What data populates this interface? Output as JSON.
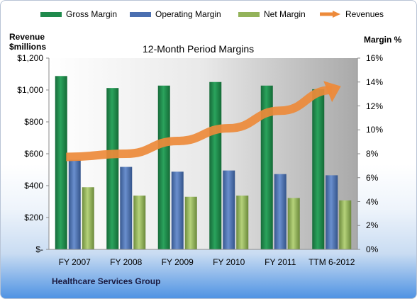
{
  "legend": [
    {
      "label": "Gross Margin",
      "color": "#1f8a4c"
    },
    {
      "label": "Operating Margin",
      "color": "#4a6fb0"
    },
    {
      "label": "Net Margin",
      "color": "#93b35a"
    },
    {
      "label": "Revenues",
      "color": "#ed8a3a"
    }
  ],
  "left_axis_title": [
    "Revenue",
    "$millions"
  ],
  "right_axis_title": "Margin %",
  "company": "Healthcare Services Group",
  "chart_data": {
    "type": "bar",
    "title": "12-Month Period Margins",
    "categories": [
      "FY 2007",
      "FY 2008",
      "FY 2009",
      "FY 2010",
      "FY 2011",
      "TTM 6-2012"
    ],
    "series": [
      {
        "name": "Gross Margin",
        "axis": "right",
        "values": [
          14.5,
          13.5,
          13.7,
          14.0,
          13.7,
          13.4
        ],
        "color": "#1f8a4c"
      },
      {
        "name": "Operating Margin",
        "axis": "right",
        "values": [
          7.5,
          6.9,
          6.5,
          6.6,
          6.3,
          6.2
        ],
        "color": "#4a6fb0"
      },
      {
        "name": "Net Margin",
        "axis": "right",
        "values": [
          5.2,
          4.5,
          4.4,
          4.5,
          4.3,
          4.1
        ],
        "color": "#93b35a"
      },
      {
        "name": "Revenues",
        "axis": "left",
        "type": "line",
        "values": [
          580,
          600,
          680,
          760,
          870,
          1000
        ],
        "color": "#ed8a3a"
      }
    ],
    "left_axis": {
      "ylim": [
        0,
        1200
      ],
      "ticks": [
        "$-",
        "$200",
        "$400",
        "$600",
        "$800",
        "$1,000",
        "$1,200"
      ]
    },
    "right_axis": {
      "ylim": [
        0,
        16
      ],
      "ticks": [
        "0%",
        "2%",
        "4%",
        "6%",
        "8%",
        "10%",
        "12%",
        "14%",
        "16%"
      ]
    },
    "grid": false
  }
}
